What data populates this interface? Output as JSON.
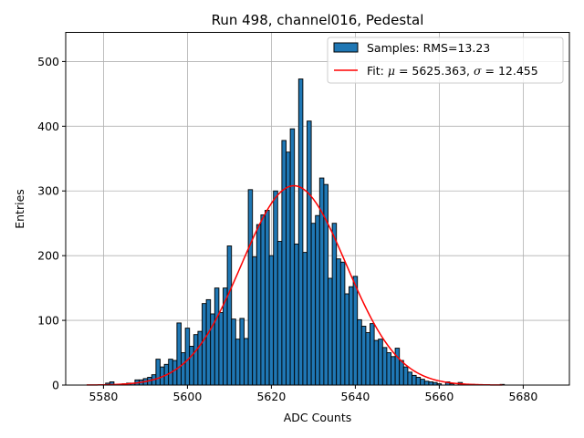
{
  "chart_data": {
    "type": "bar",
    "title": "Run 498, channel016, Pedestal",
    "xlabel": "ADC Counts",
    "ylabel": "Entries",
    "xlim": [
      5571,
      5691
    ],
    "ylim": [
      0,
      545
    ],
    "xticks": [
      5580,
      5600,
      5620,
      5640,
      5660,
      5680
    ],
    "yticks": [
      0,
      100,
      200,
      300,
      400,
      500
    ],
    "grid": true,
    "legend_position": "top-right",
    "bins": [
      [
        5581,
        3
      ],
      [
        5582,
        5
      ],
      [
        5585,
        2
      ],
      [
        5586,
        3
      ],
      [
        5587,
        3
      ],
      [
        5588,
        8
      ],
      [
        5589,
        8
      ],
      [
        5590,
        10
      ],
      [
        5591,
        12
      ],
      [
        5592,
        16
      ],
      [
        5593,
        40
      ],
      [
        5594,
        28
      ],
      [
        5595,
        32
      ],
      [
        5596,
        40
      ],
      [
        5597,
        38
      ],
      [
        5598,
        96
      ],
      [
        5599,
        50
      ],
      [
        5600,
        88
      ],
      [
        5601,
        60
      ],
      [
        5602,
        78
      ],
      [
        5603,
        83
      ],
      [
        5604,
        126
      ],
      [
        5605,
        132
      ],
      [
        5606,
        110
      ],
      [
        5607,
        150
      ],
      [
        5608,
        112
      ],
      [
        5609,
        150
      ],
      [
        5610,
        215
      ],
      [
        5611,
        102
      ],
      [
        5612,
        71
      ],
      [
        5613,
        103
      ],
      [
        5614,
        72
      ],
      [
        5615,
        302
      ],
      [
        5616,
        198
      ],
      [
        5617,
        248
      ],
      [
        5618,
        263
      ],
      [
        5619,
        270
      ],
      [
        5620,
        200
      ],
      [
        5621,
        300
      ],
      [
        5622,
        222
      ],
      [
        5623,
        378
      ],
      [
        5624,
        360
      ],
      [
        5625,
        396
      ],
      [
        5626,
        218
      ],
      [
        5627,
        473
      ],
      [
        5628,
        205
      ],
      [
        5629,
        408
      ],
      [
        5630,
        250
      ],
      [
        5631,
        262
      ],
      [
        5632,
        320
      ],
      [
        5633,
        310
      ],
      [
        5634,
        165
      ],
      [
        5635,
        250
      ],
      [
        5636,
        195
      ],
      [
        5637,
        190
      ],
      [
        5638,
        141
      ],
      [
        5639,
        152
      ],
      [
        5640,
        168
      ],
      [
        5641,
        101
      ],
      [
        5642,
        91
      ],
      [
        5643,
        81
      ],
      [
        5644,
        95
      ],
      [
        5645,
        69
      ],
      [
        5646,
        71
      ],
      [
        5647,
        58
      ],
      [
        5648,
        50
      ],
      [
        5649,
        44
      ],
      [
        5650,
        57
      ],
      [
        5651,
        38
      ],
      [
        5652,
        28
      ],
      [
        5653,
        20
      ],
      [
        5654,
        15
      ],
      [
        5655,
        12
      ],
      [
        5656,
        9
      ],
      [
        5657,
        6
      ],
      [
        5658,
        5
      ],
      [
        5659,
        4
      ],
      [
        5660,
        2
      ],
      [
        5662,
        5
      ],
      [
        5663,
        2
      ],
      [
        5665,
        4
      ],
      [
        5668,
        1
      ],
      [
        5675,
        1
      ]
    ],
    "fit": {
      "mu": 5625.363,
      "sigma": 12.455,
      "amplitude": 308,
      "x_range": [
        5576,
        5675
      ]
    },
    "series": [
      {
        "name": "Samples: RMS=13.23",
        "kind": "histogram",
        "color": "#1f77b4"
      },
      {
        "name": "Fit: μ = 5625.363, σ = 12.455",
        "kind": "line",
        "color": "#ff0000"
      }
    ]
  }
}
